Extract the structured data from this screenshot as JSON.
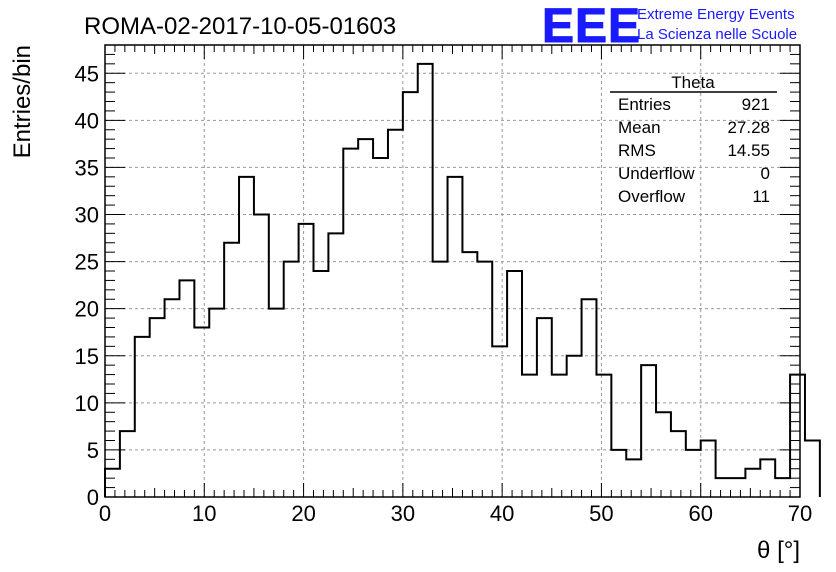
{
  "chart_data": {
    "type": "histogram",
    "title": "ROMA-02-2017-10-05-01603",
    "xlabel": "θ [°]",
    "ylabel": "Entries/bin",
    "xlim": [
      0,
      70
    ],
    "ylim": [
      0,
      48
    ],
    "x_ticks": [
      0,
      10,
      20,
      30,
      40,
      50,
      60,
      70
    ],
    "y_ticks": [
      0,
      5,
      10,
      15,
      20,
      25,
      30,
      35,
      40,
      45
    ],
    "grid": true,
    "bin_width": 1.5,
    "bin_start": 0,
    "values": [
      3,
      7,
      17,
      19,
      21,
      23,
      18,
      20,
      27,
      34,
      30,
      20,
      25,
      29,
      24,
      28,
      37,
      38,
      36,
      39,
      43,
      46,
      25,
      34,
      26,
      25,
      16,
      24,
      13,
      19,
      13,
      15,
      21,
      13,
      5,
      4,
      14,
      9,
      7,
      5,
      6,
      2,
      2,
      3,
      4,
      2,
      13,
      6
    ],
    "stats_box": {
      "title": "Theta",
      "rows": [
        {
          "label": "Entries",
          "value": "921"
        },
        {
          "label": "Mean",
          "value": "27.28"
        },
        {
          "label": "RMS",
          "value": "14.55"
        },
        {
          "label": "Underflow",
          "value": "0"
        },
        {
          "label": "Overflow",
          "value": "11"
        }
      ]
    }
  },
  "logo": {
    "text": "EEE",
    "line1": "Extreme Energy Events",
    "line2": "La Scienza nelle Scuole",
    "color": "#1a1aff"
  }
}
